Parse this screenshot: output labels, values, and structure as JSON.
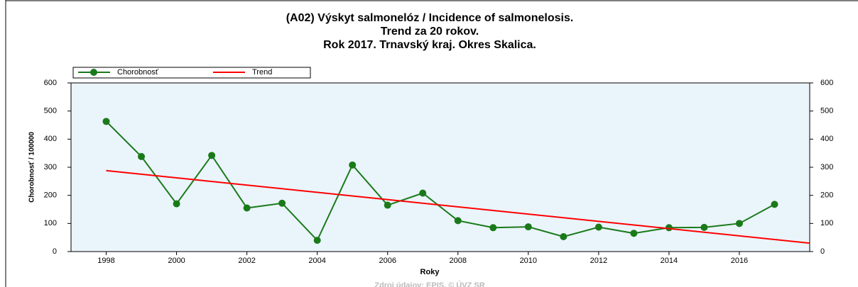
{
  "chart_data": {
    "type": "line",
    "title": "(A02) Výskyt salmonelóz / Incidence of salmonelosis.",
    "subtitle": [
      "Trend za 20 rokov.",
      "Rok 2017. Trnavský kraj. Okres Skalica."
    ],
    "xlabel": "Roky",
    "ylabel": "Chorobnosť / 100000",
    "x": [
      1998,
      1999,
      2000,
      2001,
      2002,
      2003,
      2004,
      2005,
      2006,
      2007,
      2008,
      2009,
      2010,
      2011,
      2012,
      2013,
      2014,
      2015,
      2016,
      2017
    ],
    "series": [
      {
        "name": "Chorobnosť",
        "color": "#1a7a1a",
        "values": [
          463,
          338,
          170,
          342,
          155,
          172,
          40,
          308,
          165,
          208,
          110,
          85,
          88,
          53,
          87,
          65,
          85,
          86,
          100,
          168
        ]
      },
      {
        "name": "Trend",
        "color": "#ff0000",
        "x": [
          1998,
          2018
        ],
        "values": [
          288,
          30
        ]
      }
    ],
    "xlim": [
      1997,
      2018
    ],
    "xticks": [
      1998,
      2000,
      2002,
      2004,
      2006,
      2008,
      2010,
      2012,
      2014,
      2016
    ],
    "ylim": [
      0,
      600
    ],
    "yticks": [
      0,
      100,
      200,
      300,
      400,
      500,
      600
    ],
    "y2lim": [
      0,
      600
    ],
    "y2ticks": [
      0,
      100,
      200,
      300,
      400,
      500,
      600
    ],
    "source": "Zdroj údajov: EPIS, © ÚVZ SR"
  }
}
